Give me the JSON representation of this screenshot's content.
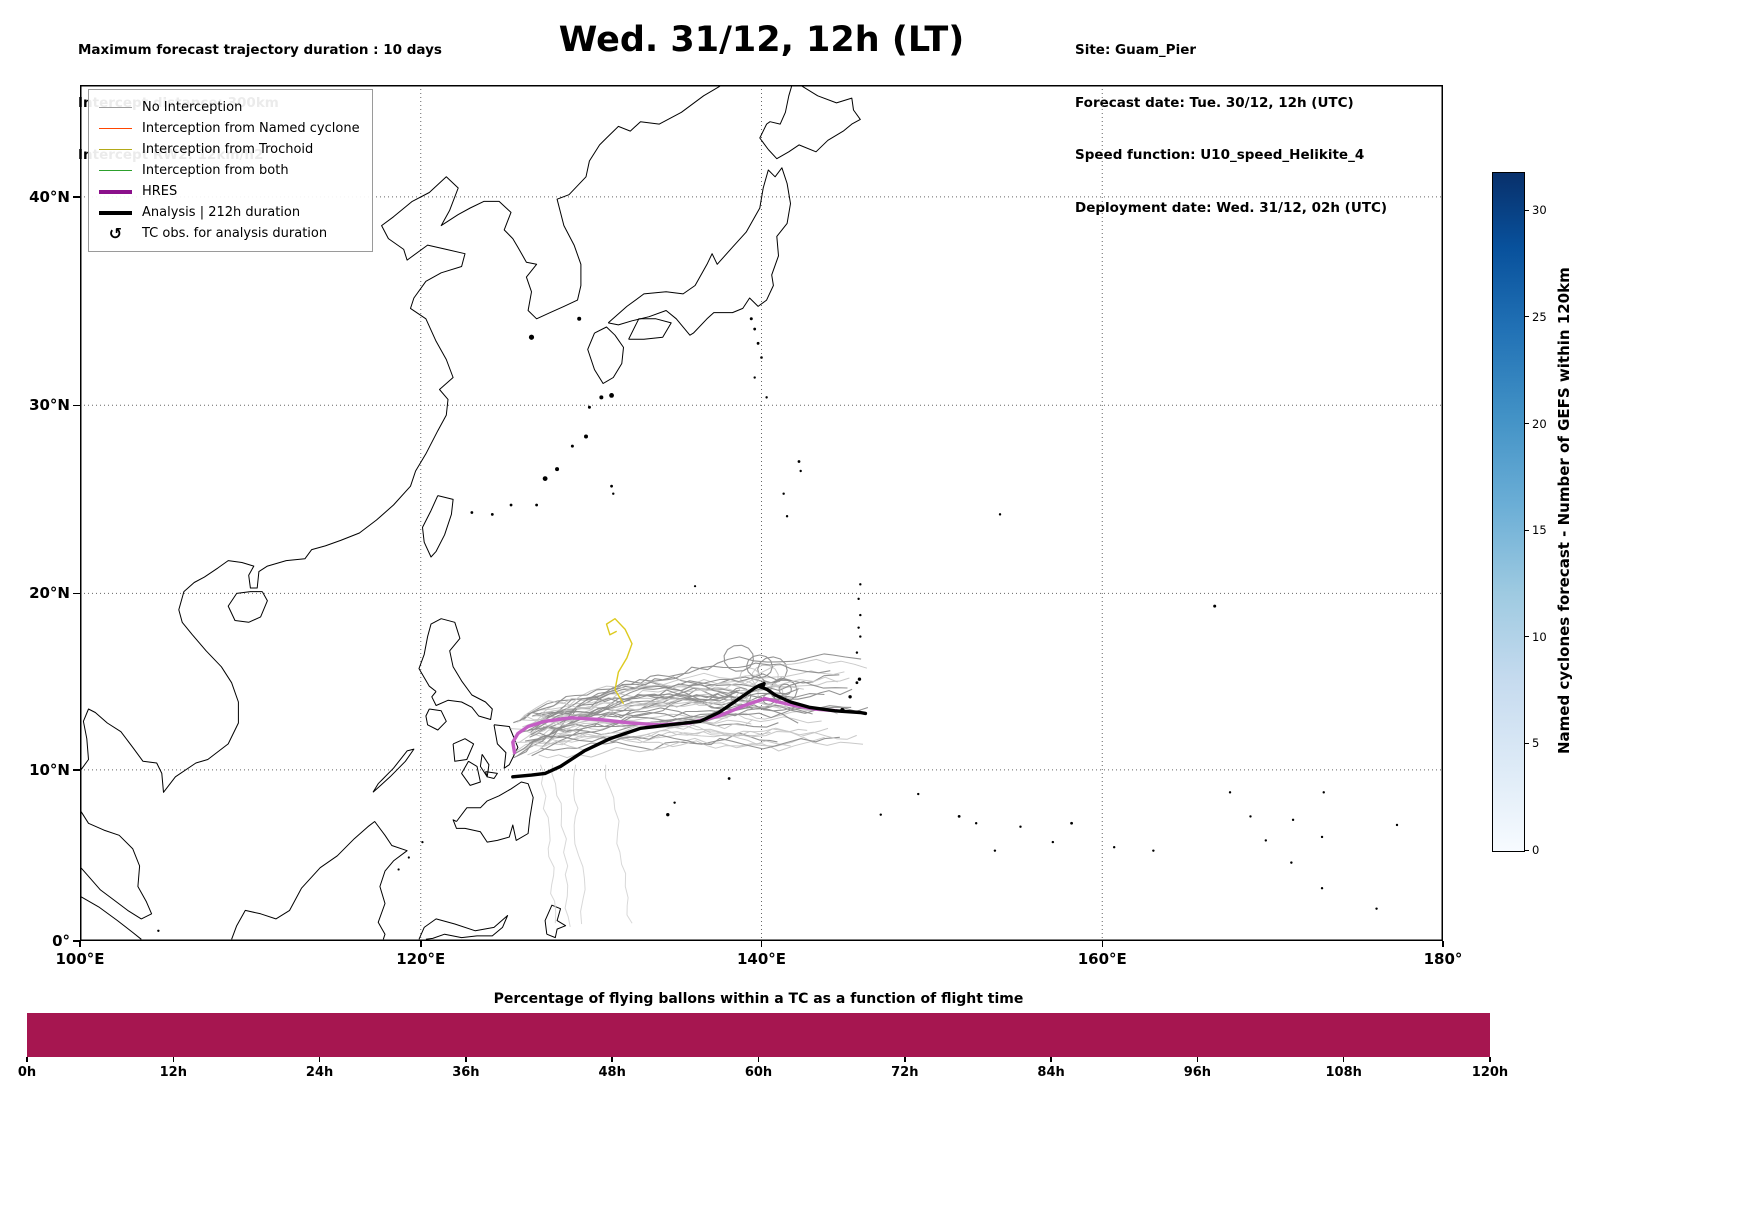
{
  "header": {
    "title": "Wed. 31/12, 12h (LT)",
    "info_left": [
      "Maximum forecast trajectory duration : 10 days",
      "Intercept distance: 300km",
      "Intercept RW2: 12km/h2"
    ],
    "info_right": [
      "Site: Guam_Pier",
      "Forecast date: Tue. 30/12, 12h (UTC)",
      "Speed function: U10_speed_Helikite_4",
      "Deployment date: Wed. 31/12, 02h (UTC)"
    ]
  },
  "legend": {
    "items": [
      {
        "label": "No Interception",
        "color": "#9e9e9e",
        "thick": false,
        "symbol": "line"
      },
      {
        "label": "Interception from Named cyclone",
        "color": "#ff4500",
        "thick": false,
        "symbol": "line"
      },
      {
        "label": "Interception from Trochoid",
        "color": "#b3a918",
        "thick": false,
        "symbol": "line"
      },
      {
        "label": "Interception from both",
        "color": "#2ca02c",
        "thick": false,
        "symbol": "line"
      },
      {
        "label": "HRES",
        "color": "#8b108b",
        "thick": true,
        "symbol": "line"
      },
      {
        "label": "Analysis | 212h duration",
        "color": "#000000",
        "thick": true,
        "symbol": "line"
      },
      {
        "label": "TC obs. for analysis duration",
        "color": "#000000",
        "thick": false,
        "symbol": "cyclone-glyph",
        "glyph": "↺"
      }
    ]
  },
  "chart_data": [
    {
      "type": "map-trajectories",
      "title": "Wed. 31/12, 12h (LT)",
      "lon_range": [
        100,
        180
      ],
      "lat_range": [
        0,
        44.9
      ],
      "grid": true,
      "lon_ticks": [
        {
          "deg": 100,
          "label": "100°E"
        },
        {
          "deg": 120,
          "label": "120°E"
        },
        {
          "deg": 140,
          "label": "140°E"
        },
        {
          "deg": 160,
          "label": "160°E"
        },
        {
          "deg": 180,
          "label": "180°"
        }
      ],
      "lat_ticks": [
        {
          "deg": 0,
          "label": "0°"
        },
        {
          "deg": 10,
          "label": "10°N"
        },
        {
          "deg": 20,
          "label": "20°N"
        },
        {
          "deg": 30,
          "label": "30°N"
        },
        {
          "deg": 40,
          "label": "40°N"
        }
      ],
      "ensemble_count": 44,
      "ensemble_colors": [
        "#d8d8d8",
        "#c6c6c6",
        "#8d8d8d"
      ],
      "trochoid_track": [
        [
          131.9,
          13.8
        ],
        [
          131.4,
          14.6
        ],
        [
          131.6,
          15.6
        ],
        [
          132.1,
          16.4
        ],
        [
          132.4,
          17.2
        ],
        [
          132.0,
          18.0
        ],
        [
          131.4,
          18.6
        ],
        [
          130.9,
          18.3
        ],
        [
          131.1,
          17.7
        ],
        [
          131.5,
          17.9
        ]
      ],
      "hres_track": [
        [
          125.5,
          11.0
        ],
        [
          125.4,
          11.6
        ],
        [
          125.7,
          12.1
        ],
        [
          126.3,
          12.5
        ],
        [
          127.3,
          12.8
        ],
        [
          128.8,
          13.0
        ],
        [
          130.5,
          12.9
        ],
        [
          132.3,
          12.7
        ],
        [
          134.0,
          12.6
        ],
        [
          135.8,
          12.7
        ],
        [
          137.5,
          13.1
        ],
        [
          139.0,
          13.7
        ],
        [
          140.2,
          14.1
        ],
        [
          141.0,
          13.9
        ],
        [
          141.9,
          13.7
        ],
        [
          143.1,
          13.5
        ],
        [
          144.4,
          13.4
        ]
      ],
      "analysis_track": [
        [
          125.4,
          9.6
        ],
        [
          126.5,
          9.7
        ],
        [
          127.3,
          9.8
        ],
        [
          128.2,
          10.2
        ],
        [
          129.6,
          11.1
        ],
        [
          131.1,
          11.8
        ],
        [
          132.9,
          12.4
        ],
        [
          134.6,
          12.6
        ],
        [
          136.4,
          12.8
        ],
        [
          137.5,
          13.3
        ],
        [
          138.7,
          14.1
        ],
        [
          139.6,
          14.7
        ],
        [
          139.9,
          14.85
        ],
        [
          140.15,
          14.95
        ],
        [
          140.05,
          14.72
        ],
        [
          139.85,
          14.8
        ],
        [
          140.35,
          14.6
        ],
        [
          140.8,
          14.3
        ],
        [
          141.7,
          13.9
        ],
        [
          142.8,
          13.6
        ],
        [
          144.3,
          13.4
        ],
        [
          145.8,
          13.3
        ],
        [
          146.1,
          13.25
        ]
      ],
      "colorbar": {
        "label": "Named cyclones forecast - Number of GEFS within 120km",
        "ticks": [
          0,
          5,
          10,
          15,
          20,
          25,
          30
        ],
        "vmin": 0,
        "vmax": 31.8,
        "colormap": "Blues"
      }
    },
    {
      "type": "bar",
      "title": "Percentage of flying ballons within a TC as a function of flight time",
      "x_tick_labels": [
        "0h",
        "12h",
        "24h",
        "36h",
        "48h",
        "60h",
        "72h",
        "84h",
        "96h",
        "108h",
        "120h"
      ],
      "x_range_hours": [
        0,
        120
      ],
      "value_percent": 100,
      "bar_color": "#a61650"
    }
  ]
}
